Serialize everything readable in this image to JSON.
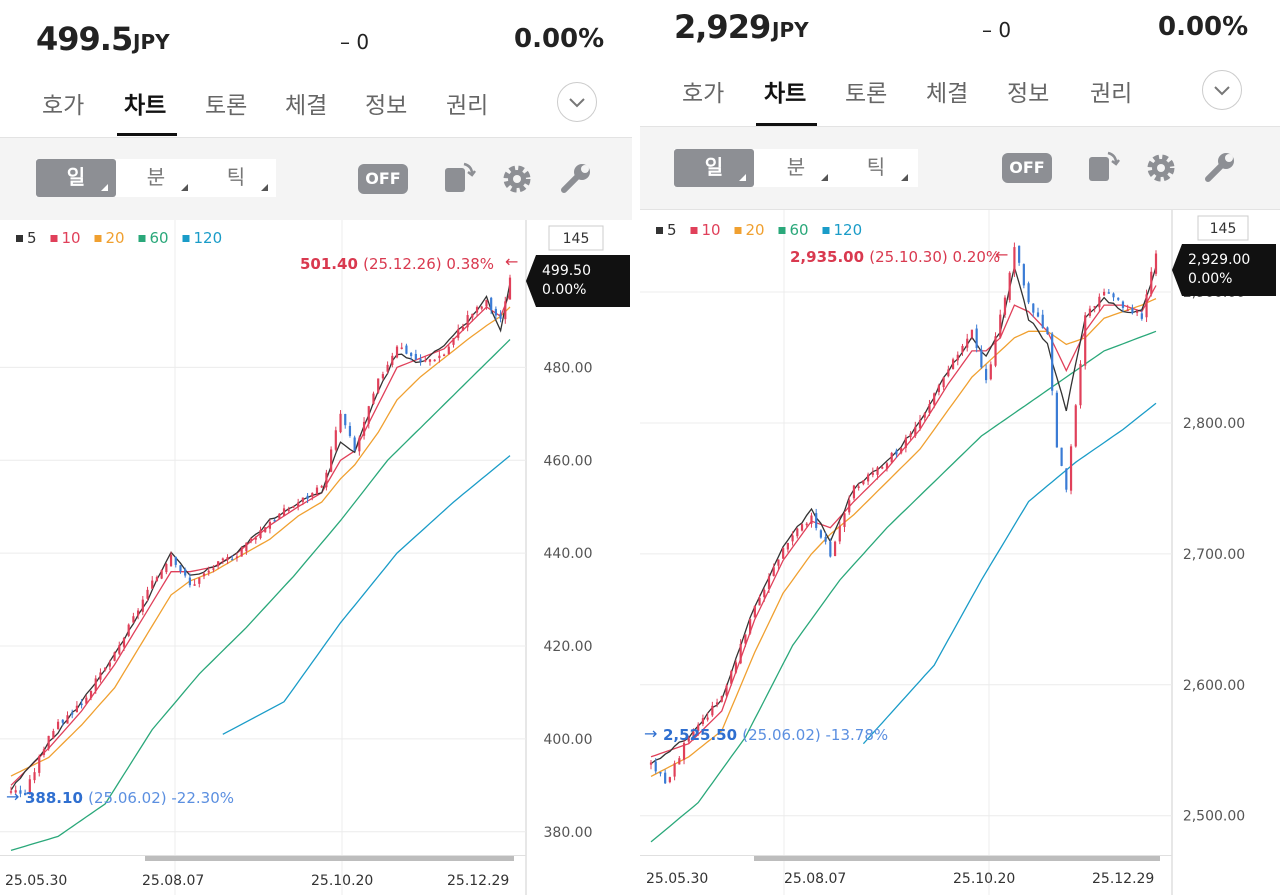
{
  "panels": [
    {
      "price": "499.5",
      "currency": "JPY",
      "change": "– 0",
      "change_pct": "0.00%",
      "tabs": [
        "호가",
        "차트",
        "토론",
        "체결",
        "정보",
        "권리"
      ],
      "active_tab": "차트",
      "periods": [
        "일",
        "분",
        "틱"
      ],
      "active_period": "일",
      "off_label": "OFF",
      "legend": [
        {
          "label": "5",
          "color": "#333333"
        },
        {
          "label": "10",
          "color": "#e0405a"
        },
        {
          "label": "20",
          "color": "#f0a030"
        },
        {
          "label": "60",
          "color": "#2aa87a"
        },
        {
          "label": "120",
          "color": "#1a9cc8"
        }
      ],
      "count_label": "145",
      "current_label_price": "499.50",
      "current_label_pct": "0.00%",
      "high_note": {
        "value": "501.40",
        "date": "(25.12.26)",
        "pct": "0.38%"
      },
      "low_note": {
        "value": "388.10",
        "date": "(25.06.02)",
        "pct": "-22.30%"
      },
      "y_labels": [
        "480.00",
        "460.00",
        "440.00",
        "420.00",
        "400.00",
        "380.00"
      ],
      "x_labels": [
        "25.05.30",
        "25.08.07",
        "25.10.20",
        "25.12.29"
      ]
    },
    {
      "price": "2,929",
      "currency": "JPY",
      "change": "– 0",
      "change_pct": "0.00%",
      "tabs": [
        "호가",
        "차트",
        "토론",
        "체결",
        "정보",
        "권리"
      ],
      "active_tab": "차트",
      "periods": [
        "일",
        "분",
        "틱"
      ],
      "active_period": "일",
      "off_label": "OFF",
      "legend": [
        {
          "label": "5",
          "color": "#333333"
        },
        {
          "label": "10",
          "color": "#e0405a"
        },
        {
          "label": "20",
          "color": "#f0a030"
        },
        {
          "label": "60",
          "color": "#2aa87a"
        },
        {
          "label": "120",
          "color": "#1a9cc8"
        }
      ],
      "count_label": "145",
      "current_label_price": "2,929.00",
      "current_label_pct": "0.00%",
      "high_note": {
        "value": "2,935.00",
        "date": "(25.10.30)",
        "pct": "0.20%"
      },
      "low_note": {
        "value": "2,525.50",
        "date": "(25.06.02)",
        "pct": "-13.78%"
      },
      "y_labels": [
        "2,900.00",
        "2,800.00",
        "2,700.00",
        "2,600.00",
        "2,500.00"
      ],
      "x_labels": [
        "25.05.30",
        "25.08.07",
        "25.10.20",
        "25.12.29"
      ]
    }
  ],
  "chart_data": [
    {
      "type": "candlestick",
      "x_range": [
        "25.05.30",
        "25.12.29"
      ],
      "ylim": [
        375,
        507
      ],
      "close_anchors": [
        [
          0,
          389
        ],
        [
          3,
          388.1
        ],
        [
          8,
          401
        ],
        [
          15,
          408
        ],
        [
          22,
          418
        ],
        [
          28,
          430
        ],
        [
          34,
          440
        ],
        [
          38,
          433
        ],
        [
          43,
          437
        ],
        [
          48,
          440
        ],
        [
          55,
          447
        ],
        [
          61,
          451
        ],
        [
          66,
          454
        ],
        [
          70,
          470
        ],
        [
          73,
          462
        ],
        [
          78,
          477
        ],
        [
          82,
          485
        ],
        [
          87,
          481
        ],
        [
          92,
          483
        ],
        [
          97,
          491
        ],
        [
          101,
          494
        ],
        [
          104,
          490
        ],
        [
          106,
          499.5
        ]
      ],
      "ma_anchors": {
        "5": [
          [
            0,
            389
          ],
          [
            8,
            399
          ],
          [
            15,
            408
          ],
          [
            22,
            418
          ],
          [
            28,
            428
          ],
          [
            34,
            440
          ],
          [
            38,
            435
          ],
          [
            43,
            437
          ],
          [
            48,
            440
          ],
          [
            55,
            447
          ],
          [
            61,
            451
          ],
          [
            66,
            453
          ],
          [
            70,
            464
          ],
          [
            73,
            462
          ],
          [
            78,
            475
          ],
          [
            82,
            483
          ],
          [
            87,
            481
          ],
          [
            92,
            485
          ],
          [
            97,
            490
          ],
          [
            101,
            495
          ],
          [
            104,
            488
          ],
          [
            106,
            498
          ]
        ],
        "10": [
          [
            0,
            390
          ],
          [
            8,
            398
          ],
          [
            15,
            406
          ],
          [
            22,
            416
          ],
          [
            28,
            426
          ],
          [
            34,
            436
          ],
          [
            38,
            436
          ],
          [
            43,
            437
          ],
          [
            48,
            440
          ],
          [
            55,
            446
          ],
          [
            61,
            450
          ],
          [
            66,
            453
          ],
          [
            70,
            460
          ],
          [
            73,
            462
          ],
          [
            78,
            472
          ],
          [
            82,
            480
          ],
          [
            87,
            482
          ],
          [
            92,
            484
          ],
          [
            97,
            489
          ],
          [
            101,
            493
          ],
          [
            104,
            491
          ],
          [
            106,
            496
          ]
        ],
        "20": [
          [
            0,
            392
          ],
          [
            8,
            396
          ],
          [
            15,
            403
          ],
          [
            22,
            411
          ],
          [
            28,
            421
          ],
          [
            34,
            431
          ],
          [
            38,
            434
          ],
          [
            43,
            436
          ],
          [
            48,
            439
          ],
          [
            55,
            443
          ],
          [
            61,
            448
          ],
          [
            66,
            451
          ],
          [
            70,
            456
          ],
          [
            73,
            459
          ],
          [
            78,
            466
          ],
          [
            82,
            473
          ],
          [
            87,
            478
          ],
          [
            92,
            482
          ],
          [
            97,
            486
          ],
          [
            101,
            489
          ],
          [
            104,
            491
          ],
          [
            106,
            493
          ]
        ],
        "60": [
          [
            0,
            376
          ],
          [
            10,
            379
          ],
          [
            20,
            386
          ],
          [
            30,
            402
          ],
          [
            40,
            414
          ],
          [
            50,
            424
          ],
          [
            60,
            435
          ],
          [
            70,
            447
          ],
          [
            80,
            460
          ],
          [
            90,
            470
          ],
          [
            100,
            480
          ],
          [
            106,
            486
          ]
        ],
        "120": [
          [
            45,
            401
          ],
          [
            58,
            408
          ],
          [
            70,
            425
          ],
          [
            82,
            440
          ],
          [
            94,
            451
          ],
          [
            106,
            461
          ]
        ]
      }
    },
    {
      "type": "candlestick",
      "x_range": [
        "25.05.30",
        "25.12.29"
      ],
      "ylim": [
        2470,
        2955
      ],
      "close_anchors": [
        [
          0,
          2540
        ],
        [
          3,
          2525.5
        ],
        [
          8,
          2560
        ],
        [
          15,
          2590
        ],
        [
          22,
          2660
        ],
        [
          28,
          2705
        ],
        [
          34,
          2730
        ],
        [
          38,
          2700
        ],
        [
          43,
          2750
        ],
        [
          50,
          2770
        ],
        [
          57,
          2800
        ],
        [
          63,
          2840
        ],
        [
          68,
          2870
        ],
        [
          71,
          2830
        ],
        [
          74,
          2880
        ],
        [
          77,
          2935
        ],
        [
          80,
          2890
        ],
        [
          84,
          2870
        ],
        [
          86,
          2780
        ],
        [
          88,
          2750
        ],
        [
          92,
          2880
        ],
        [
          96,
          2900
        ],
        [
          100,
          2890
        ],
        [
          104,
          2880
        ],
        [
          107,
          2929
        ]
      ],
      "ma_anchors": {
        "5": [
          [
            0,
            2540
          ],
          [
            8,
            2560
          ],
          [
            15,
            2590
          ],
          [
            22,
            2660
          ],
          [
            28,
            2705
          ],
          [
            34,
            2735
          ],
          [
            38,
            2710
          ],
          [
            43,
            2750
          ],
          [
            50,
            2770
          ],
          [
            57,
            2800
          ],
          [
            63,
            2840
          ],
          [
            68,
            2865
          ],
          [
            71,
            2850
          ],
          [
            74,
            2870
          ],
          [
            77,
            2920
          ],
          [
            80,
            2880
          ],
          [
            84,
            2860
          ],
          [
            88,
            2810
          ],
          [
            92,
            2880
          ],
          [
            96,
            2895
          ],
          [
            100,
            2885
          ],
          [
            104,
            2885
          ],
          [
            107,
            2920
          ]
        ],
        "10": [
          [
            0,
            2545
          ],
          [
            8,
            2555
          ],
          [
            15,
            2580
          ],
          [
            22,
            2650
          ],
          [
            28,
            2695
          ],
          [
            34,
            2725
          ],
          [
            38,
            2720
          ],
          [
            43,
            2740
          ],
          [
            50,
            2765
          ],
          [
            57,
            2795
          ],
          [
            63,
            2830
          ],
          [
            68,
            2855
          ],
          [
            71,
            2855
          ],
          [
            74,
            2865
          ],
          [
            77,
            2890
          ],
          [
            80,
            2885
          ],
          [
            84,
            2870
          ],
          [
            88,
            2840
          ],
          [
            92,
            2870
          ],
          [
            96,
            2890
          ],
          [
            100,
            2890
          ],
          [
            104,
            2885
          ],
          [
            107,
            2905
          ]
        ],
        "20": [
          [
            0,
            2530
          ],
          [
            8,
            2545
          ],
          [
            15,
            2565
          ],
          [
            22,
            2625
          ],
          [
            28,
            2670
          ],
          [
            34,
            2700
          ],
          [
            38,
            2715
          ],
          [
            43,
            2730
          ],
          [
            50,
            2755
          ],
          [
            57,
            2780
          ],
          [
            63,
            2810
          ],
          [
            68,
            2835
          ],
          [
            71,
            2845
          ],
          [
            74,
            2855
          ],
          [
            77,
            2865
          ],
          [
            80,
            2870
          ],
          [
            84,
            2870
          ],
          [
            88,
            2860
          ],
          [
            92,
            2865
          ],
          [
            96,
            2880
          ],
          [
            100,
            2885
          ],
          [
            104,
            2890
          ],
          [
            107,
            2895
          ]
        ],
        "60": [
          [
            0,
            2480
          ],
          [
            10,
            2510
          ],
          [
            20,
            2560
          ],
          [
            30,
            2630
          ],
          [
            40,
            2680
          ],
          [
            50,
            2720
          ],
          [
            60,
            2755
          ],
          [
            70,
            2790
          ],
          [
            80,
            2815
          ],
          [
            88,
            2835
          ],
          [
            96,
            2855
          ],
          [
            107,
            2870
          ]
        ],
        "120": [
          [
            45,
            2555
          ],
          [
            60,
            2615
          ],
          [
            70,
            2680
          ],
          [
            80,
            2740
          ],
          [
            90,
            2770
          ],
          [
            100,
            2795
          ],
          [
            107,
            2815
          ]
        ]
      }
    }
  ]
}
